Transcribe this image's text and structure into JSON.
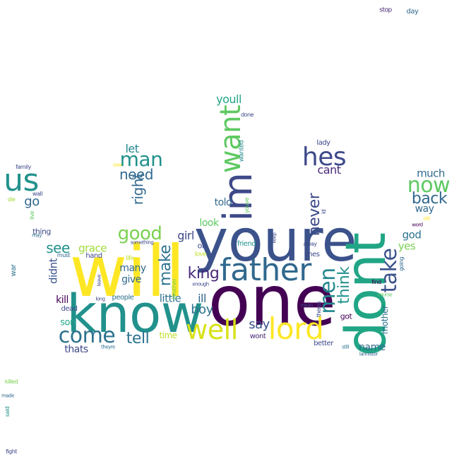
{
  "words": [
    {
      "text": "one",
      "color": "#440154",
      "vertical": false
    },
    {
      "text": "will",
      "color": "#fde725",
      "vertical": false
    },
    {
      "text": "youre",
      "color": "#3b528b",
      "vertical": false
    },
    {
      "text": "dont",
      "color": "#21a585",
      "vertical": true
    },
    {
      "text": "know",
      "color": "#21918c",
      "vertical": false
    },
    {
      "text": "im",
      "color": "#3e4989",
      "vertical": true
    },
    {
      "text": "father",
      "color": "#31688e",
      "vertical": false
    },
    {
      "text": "lord",
      "color": "#fde725",
      "vertical": false
    },
    {
      "text": "well",
      "color": "#d8e219",
      "vertical": false
    },
    {
      "text": "want",
      "color": "#5ec962",
      "vertical": true
    },
    {
      "text": "us",
      "color": "#21918c",
      "vertical": false
    },
    {
      "text": "hes",
      "color": "#3e4989",
      "vertical": false
    },
    {
      "text": "come",
      "color": "#2c728e",
      "vertical": false
    },
    {
      "text": "now",
      "color": "#5ec962",
      "vertical": false
    },
    {
      "text": "men",
      "color": "#23888e",
      "vertical": true
    },
    {
      "text": "take",
      "color": "#3b528b",
      "vertical": true
    },
    {
      "text": "man",
      "color": "#21918c",
      "vertical": false
    },
    {
      "text": "good",
      "color": "#7ad151",
      "vertical": false
    },
    {
      "text": "back",
      "color": "#31688e",
      "vertical": false
    },
    {
      "text": "king",
      "color": "#482878",
      "vertical": false
    },
    {
      "text": "make",
      "color": "#2c728e",
      "vertical": true
    },
    {
      "text": "never",
      "color": "#3e4989",
      "vertical": true
    },
    {
      "text": "think",
      "color": "#21918c",
      "vertical": true
    },
    {
      "text": "tell",
      "color": "#2c728e",
      "vertical": false
    },
    {
      "text": "need",
      "color": "#31688e",
      "vertical": false
    },
    {
      "text": "see",
      "color": "#21918c",
      "vertical": false
    },
    {
      "text": "right",
      "color": "#31688e",
      "vertical": true
    },
    {
      "text": "say",
      "color": "#3b528b",
      "vertical": false
    },
    {
      "text": "boy",
      "color": "#2c728e",
      "vertical": false
    },
    {
      "text": "go",
      "color": "#31688e",
      "vertical": false
    },
    {
      "text": "cant",
      "color": "#482878",
      "vertical": false
    },
    {
      "text": "let",
      "color": "#23888e",
      "vertical": false
    },
    {
      "text": "girl",
      "color": "#3e4989",
      "vertical": false
    },
    {
      "text": "ill",
      "color": "#31688e",
      "vertical": false
    },
    {
      "text": "youll",
      "color": "#21a585",
      "vertical": false
    },
    {
      "text": "grace",
      "color": "#a0da39",
      "vertical": false
    },
    {
      "text": "much",
      "color": "#31688e",
      "vertical": false
    },
    {
      "text": "way",
      "color": "#31688e",
      "vertical": false
    },
    {
      "text": "didnt",
      "color": "#3b528b",
      "vertical": true
    },
    {
      "text": "many",
      "color": "#31688e",
      "vertical": false
    },
    {
      "text": "little",
      "color": "#2c728e",
      "vertical": false
    },
    {
      "text": "kill",
      "color": "#440154",
      "vertical": false
    },
    {
      "text": "look",
      "color": "#5ec962",
      "vertical": false
    },
    {
      "text": "told",
      "color": "#31688e",
      "vertical": false
    },
    {
      "text": "god",
      "color": "#2c728e",
      "vertical": false
    },
    {
      "text": "yes",
      "color": "#7ad151",
      "vertical": false
    },
    {
      "text": "give",
      "color": "#31688e",
      "vertical": false
    },
    {
      "text": "name",
      "color": "#31688e",
      "vertical": false
    },
    {
      "text": "mother",
      "color": "#2c728e",
      "vertical": true
    },
    {
      "text": "thats",
      "color": "#3e4989",
      "vertical": false
    },
    {
      "text": "son",
      "color": "#21a585",
      "vertical": false
    },
    {
      "text": "time",
      "color": "#bddf26",
      "vertical": false
    },
    {
      "text": "thing",
      "color": "#3e4989",
      "vertical": false
    },
    {
      "text": "oh",
      "color": "#3e4989",
      "vertical": false
    },
    {
      "text": "friend",
      "color": "#21918c",
      "vertical": false
    },
    {
      "text": "shes",
      "color": "#3e4989",
      "vertical": false
    },
    {
      "text": "got",
      "color": "#440154",
      "vertical": false
    },
    {
      "text": "people",
      "color": "#2c728e",
      "vertical": false
    },
    {
      "text": "hand",
      "color": "#3e4989",
      "vertical": false
    },
    {
      "text": "dead",
      "color": "#3e4989",
      "vertical": false
    },
    {
      "text": "lady",
      "color": "#3e4989",
      "vertical": false
    },
    {
      "text": "brother",
      "color": "#7ad151",
      "vertical": true
    },
    {
      "text": "wont",
      "color": "#482878",
      "vertical": false
    },
    {
      "text": "better",
      "color": "#3e4989",
      "vertical": false
    },
    {
      "text": "war",
      "color": "#2c728e",
      "vertical": true
    },
    {
      "text": "love",
      "color": "#bddf26",
      "vertical": false
    },
    {
      "text": "life",
      "color": "#bddf26",
      "vertical": false
    },
    {
      "text": "day",
      "color": "#31688e",
      "vertical": false
    },
    {
      "text": "stop",
      "color": "#482878",
      "vertical": false
    },
    {
      "text": "done",
      "color": "#3e4989",
      "vertical": false
    },
    {
      "text": "family",
      "color": "#3e4989",
      "vertical": false
    },
    {
      "text": "wanted",
      "color": "#23888e",
      "vertical": true
    },
    {
      "text": "saw",
      "color": "#fde725",
      "vertical": false
    },
    {
      "text": "wall",
      "color": "#3e4989",
      "vertical": false
    },
    {
      "text": "die",
      "color": "#a0da39",
      "vertical": false
    },
    {
      "text": "live",
      "color": "#5ec962",
      "vertical": true
    },
    {
      "text": "may",
      "color": "#2c728e",
      "vertical": false
    },
    {
      "text": "must",
      "color": "#31688e",
      "vertical": false
    },
    {
      "text": "something",
      "color": "#3e4989",
      "vertical": false
    },
    {
      "text": "youve",
      "color": "#5ec962",
      "vertical": true
    },
    {
      "text": "id",
      "color": "#3e4989",
      "vertical": true
    },
    {
      "text": "keep",
      "color": "#3e4989",
      "vertical": true
    },
    {
      "text": "away",
      "color": "#3e4989",
      "vertical": false
    },
    {
      "text": "mean",
      "color": "#3e4989",
      "vertical": false
    },
    {
      "text": "theres",
      "color": "#3e4989",
      "vertical": true
    },
    {
      "text": "find",
      "color": "#440154",
      "vertical": false
    },
    {
      "text": "course",
      "color": "#5ec962",
      "vertical": false
    },
    {
      "text": "going",
      "color": "#31688e",
      "vertical": true
    },
    {
      "text": "word",
      "color": "#440154",
      "vertical": false
    },
    {
      "text": "old",
      "color": "#fde725",
      "vertical": false
    },
    {
      "text": "leave",
      "color": "#3e4989",
      "vertical": true
    },
    {
      "text": "long",
      "color": "#3e4989",
      "vertical": false
    },
    {
      "text": "enough",
      "color": "#3e4989",
      "vertical": false
    },
    {
      "text": "still",
      "color": "#2c728e",
      "vertical": false
    },
    {
      "text": "theyre",
      "color": "#2c728e",
      "vertical": false
    },
    {
      "text": "lannister",
      "color": "#31688e",
      "vertical": false
    },
    {
      "text": "killed",
      "color": "#7ad151",
      "vertical": false
    },
    {
      "text": "made",
      "color": "#31688e",
      "vertical": false
    },
    {
      "text": "said",
      "color": "#21918c",
      "vertical": true
    },
    {
      "text": "fight",
      "color": "#3e4989",
      "vertical": false
    }
  ]
}
